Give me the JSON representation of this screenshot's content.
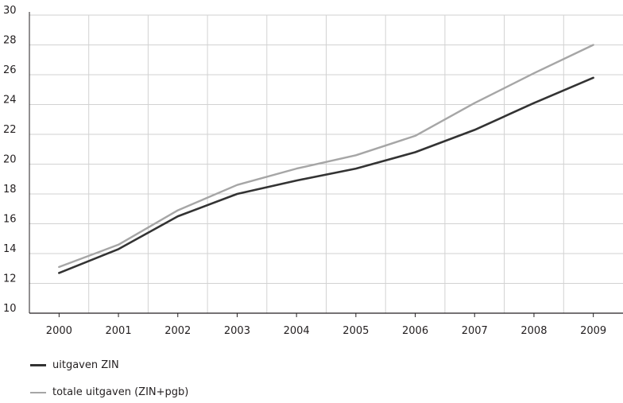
{
  "chart_data": {
    "type": "line",
    "x": [
      "2000",
      "2001",
      "2002",
      "2003",
      "2004",
      "2005",
      "2006",
      "2007",
      "2008",
      "2009"
    ],
    "ylim": [
      10,
      30
    ],
    "yticks": [
      "10",
      "12",
      "14",
      "16",
      "18",
      "20",
      "22",
      "24",
      "26",
      "28",
      "30"
    ],
    "grid": true,
    "legend_position": "bottom-left",
    "series": [
      {
        "name": "uitgaven ZIN",
        "color": "#333333",
        "values": [
          12.7,
          14.3,
          16.5,
          18.0,
          18.9,
          19.7,
          20.8,
          22.3,
          24.1,
          25.8
        ]
      },
      {
        "name": "totale uitgaven (ZIN+pgb)",
        "color": "#a6a6a6",
        "values": [
          13.1,
          14.6,
          16.9,
          18.6,
          19.7,
          20.6,
          21.9,
          24.1,
          26.1,
          28.0
        ]
      }
    ]
  }
}
